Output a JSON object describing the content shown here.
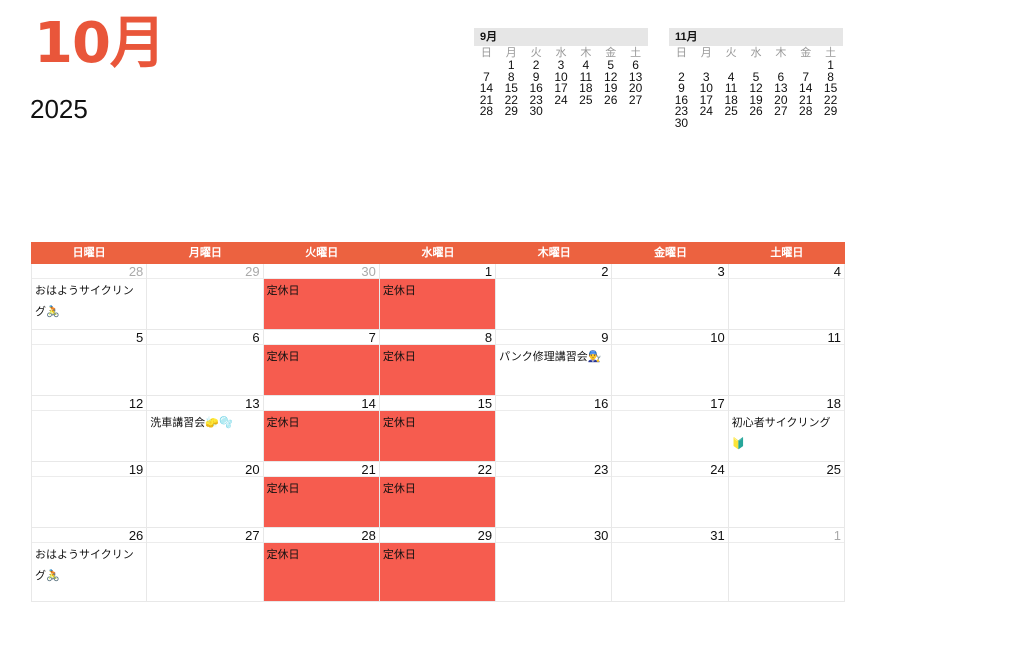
{
  "header": {
    "month": "10月",
    "year": "2025"
  },
  "weekday_short": [
    "日",
    "月",
    "火",
    "水",
    "木",
    "金",
    "土"
  ],
  "mini_calendars": [
    {
      "title": "9月",
      "weeks": [
        [
          "",
          "1",
          "2",
          "3",
          "4",
          "5",
          "6"
        ],
        [
          "7",
          "8",
          "9",
          "10",
          "11",
          "12",
          "13"
        ],
        [
          "14",
          "15",
          "16",
          "17",
          "18",
          "19",
          "20"
        ],
        [
          "21",
          "22",
          "23",
          "24",
          "25",
          "26",
          "27"
        ],
        [
          "28",
          "29",
          "30",
          "",
          "",
          "",
          ""
        ]
      ]
    },
    {
      "title": "11月",
      "weeks": [
        [
          "",
          "",
          "",
          "",
          "",
          "",
          "1"
        ],
        [
          "2",
          "3",
          "4",
          "5",
          "6",
          "7",
          "8"
        ],
        [
          "9",
          "10",
          "11",
          "12",
          "13",
          "14",
          "15"
        ],
        [
          "16",
          "17",
          "18",
          "19",
          "20",
          "21",
          "22"
        ],
        [
          "23",
          "24",
          "25",
          "26",
          "27",
          "28",
          "29"
        ],
        [
          "30",
          "",
          "",
          "",
          "",
          "",
          ""
        ]
      ]
    }
  ],
  "calendar": {
    "weekdays": [
      "日曜日",
      "月曜日",
      "火曜日",
      "水曜日",
      "木曜日",
      "金曜日",
      "土曜日"
    ],
    "closed_color": "#f65c4f",
    "header_color": "#ec6240",
    "weeks": [
      [
        {
          "day": "28",
          "other": true,
          "event": "おはようサイクリング🚴"
        },
        {
          "day": "29",
          "other": true,
          "event": ""
        },
        {
          "day": "30",
          "other": true,
          "event": "定休日",
          "closed": true
        },
        {
          "day": "1",
          "event": "定休日",
          "closed": true
        },
        {
          "day": "2",
          "event": ""
        },
        {
          "day": "3",
          "event": ""
        },
        {
          "day": "4",
          "event": ""
        }
      ],
      [
        {
          "day": "5",
          "event": ""
        },
        {
          "day": "6",
          "event": ""
        },
        {
          "day": "7",
          "event": "定休日",
          "closed": true
        },
        {
          "day": "8",
          "event": "定休日",
          "closed": true
        },
        {
          "day": "9",
          "event": "パンク修理講習会👨‍🔧"
        },
        {
          "day": "10",
          "event": ""
        },
        {
          "day": "11",
          "event": ""
        }
      ],
      [
        {
          "day": "12",
          "event": ""
        },
        {
          "day": "13",
          "event": "洗車講習会🧽🫧"
        },
        {
          "day": "14",
          "event": "定休日",
          "closed": true
        },
        {
          "day": "15",
          "event": "定休日",
          "closed": true
        },
        {
          "day": "16",
          "event": ""
        },
        {
          "day": "17",
          "event": ""
        },
        {
          "day": "18",
          "event": "初心者サイクリング🔰"
        }
      ],
      [
        {
          "day": "19",
          "event": ""
        },
        {
          "day": "20",
          "event": ""
        },
        {
          "day": "21",
          "event": "定休日",
          "closed": true
        },
        {
          "day": "22",
          "event": "定休日",
          "closed": true
        },
        {
          "day": "23",
          "event": ""
        },
        {
          "day": "24",
          "event": ""
        },
        {
          "day": "25",
          "event": ""
        }
      ],
      [
        {
          "day": "26",
          "event": "おはようサイクリング🚴"
        },
        {
          "day": "27",
          "event": ""
        },
        {
          "day": "28",
          "event": "定休日",
          "closed": true
        },
        {
          "day": "29",
          "event": "定休日",
          "closed": true
        },
        {
          "day": "30",
          "event": ""
        },
        {
          "day": "31",
          "event": ""
        },
        {
          "day": "1",
          "other": true,
          "event": ""
        }
      ]
    ]
  }
}
